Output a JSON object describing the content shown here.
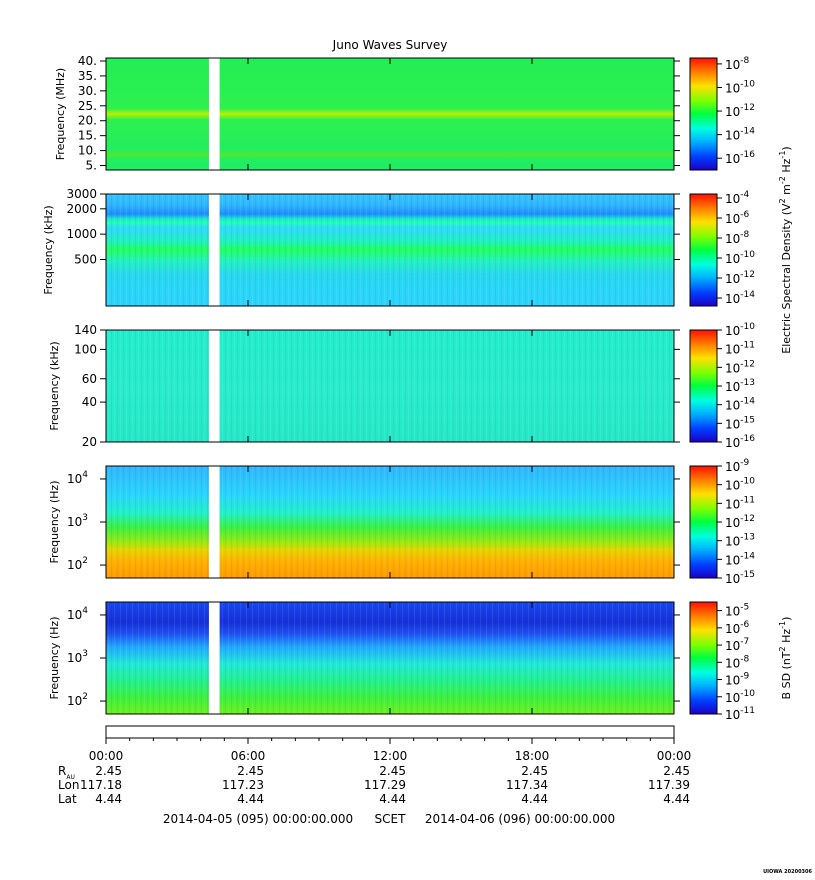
{
  "title": "Juno Waves Survey",
  "chart_data": [
    {
      "type": "heatmap",
      "ylabel": "Frequency (MHz)",
      "yscale": "linear",
      "ylim": [
        3.5,
        41
      ],
      "ytick_values": [
        5,
        10,
        15,
        20,
        25,
        30,
        35,
        40
      ],
      "ytick_labels": [
        "5.",
        "10.",
        "15.",
        "20.",
        "25.",
        "30.",
        "35.",
        "40."
      ],
      "colorbar_label": "",
      "colorbar_exponents": [
        "-8",
        "-10",
        "-12",
        "-14",
        "-16"
      ],
      "colorbar_range_log": [
        -17,
        -7.5
      ]
    },
    {
      "type": "heatmap",
      "ylabel": "Frequency (kHz)",
      "yscale": "log",
      "ylim": [
        140,
        3000
      ],
      "ytick_values": [
        500,
        1000,
        2000,
        3000
      ],
      "ytick_labels": [
        "500",
        "1000",
        "2000",
        "3000"
      ],
      "colorbar_label_parts": [
        "Electric Spectral Density (V",
        "2",
        " m",
        "-2",
        " Hz",
        "-1",
        ")"
      ],
      "colorbar_exponents": [
        "-4",
        "-6",
        "-8",
        "-10",
        "-12",
        "-14"
      ],
      "colorbar_range_log": [
        -14.8,
        -3.6
      ]
    },
    {
      "type": "heatmap",
      "ylabel": "Frequency (kHz)",
      "yscale": "log",
      "ylim": [
        20,
        140
      ],
      "ytick_values": [
        20,
        40,
        60,
        100,
        140
      ],
      "ytick_labels": [
        "20",
        "40",
        "60",
        "100",
        "140"
      ],
      "colorbar_label": "",
      "colorbar_exponents": [
        "-10",
        "-11",
        "-12",
        "-13",
        "-14",
        "-15",
        "-16"
      ],
      "colorbar_range_log": [
        -16,
        -10
      ]
    },
    {
      "type": "heatmap",
      "ylabel": "Frequency (Hz)",
      "yscale": "log",
      "ylim": [
        50,
        20000
      ],
      "ytick_values": [
        100,
        1000,
        10000
      ],
      "ytick_labels": [
        "10",
        "10",
        "10"
      ],
      "ytick_exponents": [
        "2",
        "3",
        "4"
      ],
      "colorbar_label": "",
      "colorbar_exponents": [
        "-9",
        "-10",
        "-11",
        "-12",
        "-13",
        "-14",
        "-15"
      ],
      "colorbar_range_log": [
        -15,
        -9
      ]
    },
    {
      "type": "heatmap",
      "ylabel": "Frequency (Hz)",
      "yscale": "log",
      "ylim": [
        50,
        20000
      ],
      "ytick_values": [
        100,
        1000,
        10000
      ],
      "ytick_labels": [
        "10",
        "10",
        "10"
      ],
      "ytick_exponents": [
        "2",
        "3",
        "4"
      ],
      "colorbar_label_parts": [
        "B SD (nT",
        "2",
        " Hz",
        "-1",
        ")"
      ],
      "colorbar_exponents": [
        "-5",
        "-6",
        "-7",
        "-8",
        "-9",
        "-10",
        "-11"
      ],
      "colorbar_range_log": [
        -11,
        -4.5
      ]
    }
  ],
  "colorbar_base": "10",
  "data_gap_hours": [
    4.35,
    4.8
  ],
  "xaxis": {
    "range_hours": [
      0,
      24
    ],
    "tick_hours": [
      0,
      6,
      12,
      18,
      24
    ],
    "tick_labels": [
      "00:00",
      "06:00",
      "12:00",
      "18:00",
      "00:00"
    ]
  },
  "ephemeris": {
    "rows": [
      {
        "label": "R",
        "sub": "AU",
        "values": [
          "2.45",
          "2.45",
          "2.45",
          "2.45",
          "2.45"
        ]
      },
      {
        "label": "Lon",
        "sub": "",
        "values": [
          "117.18",
          "117.23",
          "117.29",
          "117.34",
          "117.39"
        ]
      },
      {
        "label": "Lat",
        "sub": "",
        "values": [
          "4.44",
          "4.44",
          "4.44",
          "4.44",
          "4.44"
        ]
      }
    ]
  },
  "time_range": {
    "start": "2014-04-05 (095) 00:00:00.000",
    "label": "SCET",
    "end": "2014-04-06 (096) 00:00:00.000"
  },
  "footer": "UIOWA 20200306"
}
